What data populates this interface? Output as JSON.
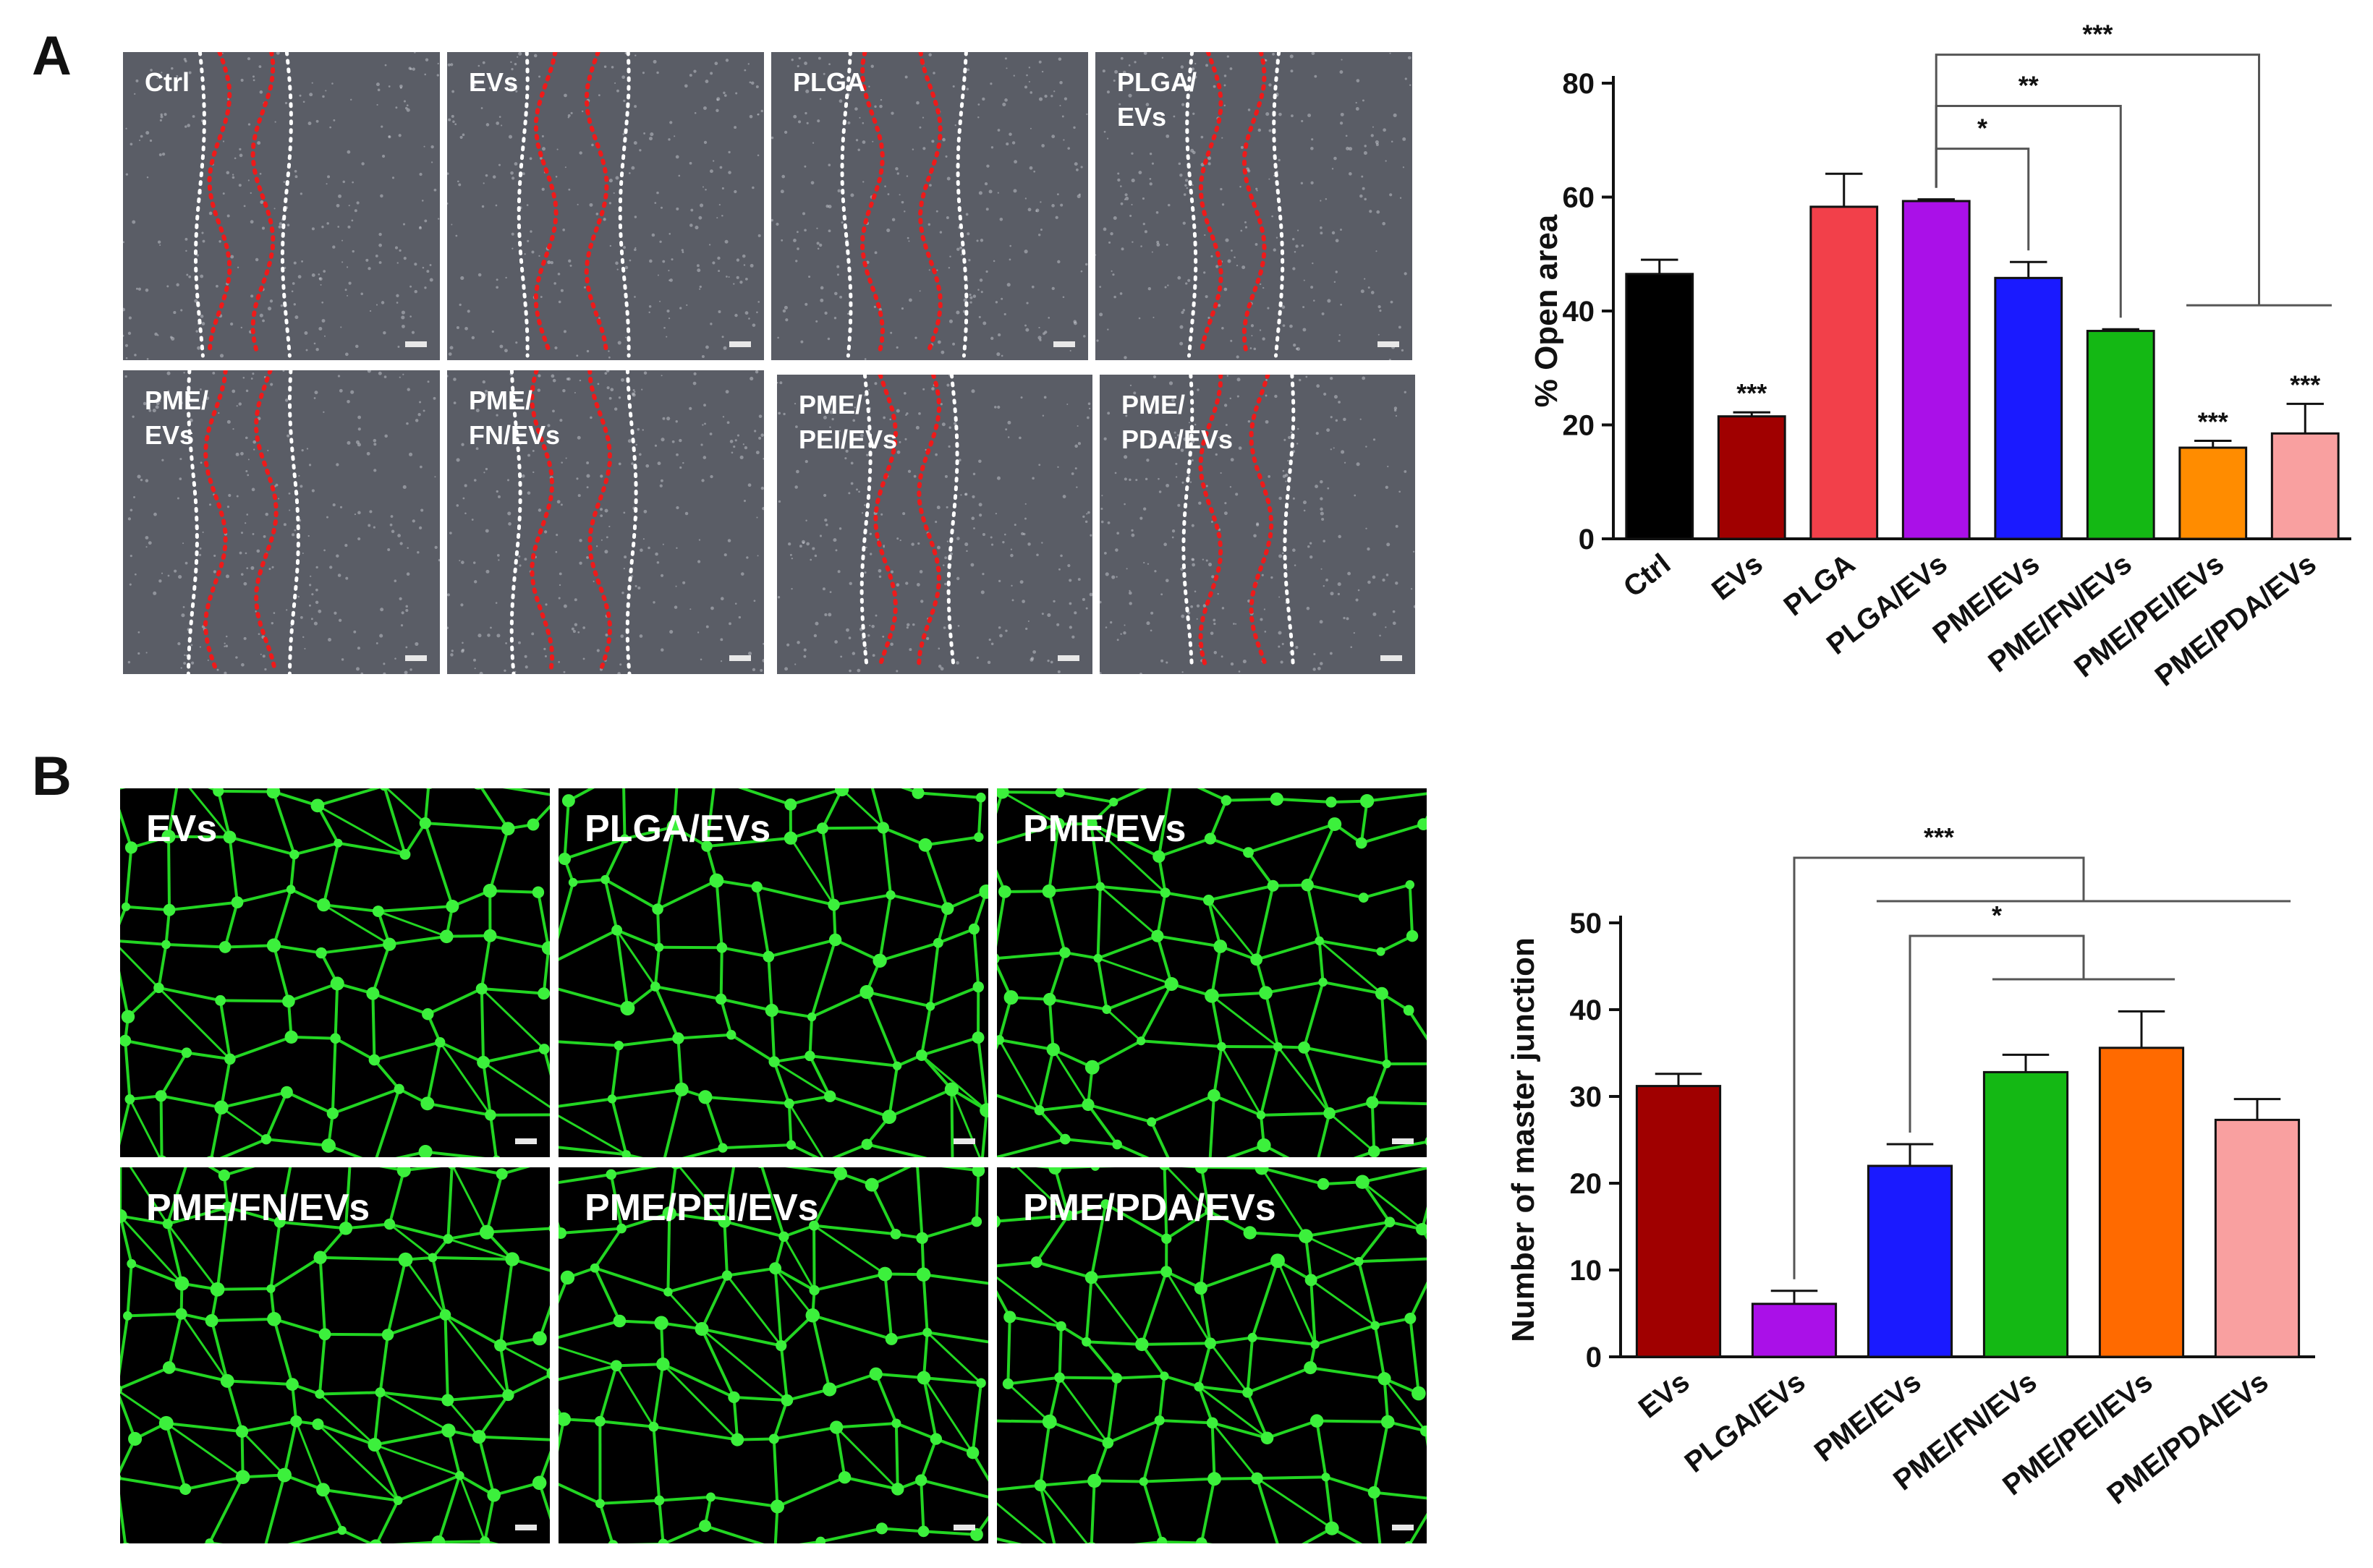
{
  "panels": {
    "a_letter": "A",
    "b_letter": "B"
  },
  "panel_a_images": [
    {
      "label": "Ctrl"
    },
    {
      "label": "EVs"
    },
    {
      "label": "PLGA"
    },
    {
      "label": "PLGA/\nEVs"
    },
    {
      "label": "PME/\nEVs"
    },
    {
      "label": "PME/\nFN/EVs"
    },
    {
      "label": "PME/\nPEI/EVs"
    },
    {
      "label": "PME/\nPDA/EVs"
    }
  ],
  "panel_b_images": [
    {
      "label": "EVs"
    },
    {
      "label": "PLGA/EVs"
    },
    {
      "label": "PME/EVs"
    },
    {
      "label": "PME/FN/EVs"
    },
    {
      "label": "PME/PEI/EVs"
    },
    {
      "label": "PME/PDA/EVs"
    }
  ],
  "chart_data": [
    {
      "type": "bar",
      "categories": [
        "Ctrl",
        "EVs",
        "PLGA",
        "PLGA/EVs",
        "PME/EVs",
        "PME/FN/EVs",
        "PME/PEI/EVs",
        "PME/PDA/EVs"
      ],
      "values": [
        46.5,
        21.5,
        58.3,
        59.3,
        45.8,
        36.5,
        16.0,
        18.5
      ],
      "errors": [
        2.5,
        0.7,
        5.8,
        0.3,
        2.8,
        0.3,
        1.2,
        5.2
      ],
      "colors": [
        "#000000",
        "#a00000",
        "#f2404a",
        "#aa10e8",
        "#1a1aff",
        "#14b814",
        "#ff8c00",
        "#f9a0a0"
      ],
      "bar_annotations": [
        "",
        "***",
        "",
        "",
        "",
        "",
        "***",
        "***"
      ],
      "ylabel": "% Open area",
      "ylim": [
        0,
        80
      ],
      "yticks": [
        0,
        20,
        40,
        60,
        80
      ],
      "significance": [
        {
          "from": 3,
          "to": 4,
          "label": "*"
        },
        {
          "from": 3,
          "to": 5,
          "label": "**"
        },
        {
          "from": 3,
          "to_group": [
            6,
            7
          ],
          "label": "***"
        }
      ]
    },
    {
      "type": "bar",
      "categories": [
        "EVs",
        "PLGA/EVs",
        "PME/EVs",
        "PME/FN/EVs",
        "PME/PEI/EVs",
        "PME/PDA/EVs"
      ],
      "values": [
        31.2,
        6.1,
        22.0,
        32.8,
        35.6,
        27.3
      ],
      "errors": [
        1.4,
        1.5,
        2.5,
        2.0,
        4.2,
        2.4
      ],
      "colors": [
        "#a00000",
        "#aa10e8",
        "#1a1aff",
        "#14b814",
        "#ff6a00",
        "#f9a0a0"
      ],
      "ylabel": "Number of master junction",
      "ylim": [
        0,
        50
      ],
      "yticks": [
        0,
        10,
        20,
        30,
        40,
        50
      ],
      "significance": [
        {
          "from": 1,
          "to_group": [
            2,
            3,
            4,
            5
          ],
          "label": "***"
        },
        {
          "from": 2,
          "to_group": [
            3,
            4
          ],
          "label": "*"
        }
      ]
    }
  ]
}
